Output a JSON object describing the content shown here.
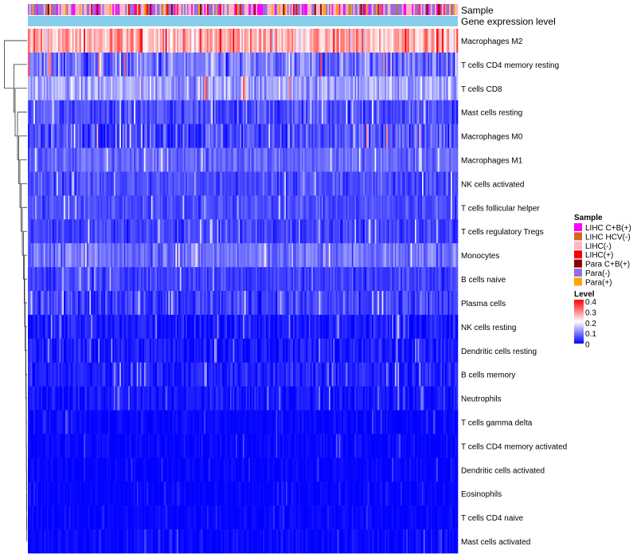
{
  "chart_data": {
    "type": "heatmap",
    "title": "",
    "annotation_tracks": [
      "Sample",
      "Gene expression level"
    ],
    "gene_expression_level_color": "#87ceeb",
    "rows": [
      {
        "name": "Macrophages M2",
        "mean": 0.26,
        "spread": 0.09
      },
      {
        "name": "T cells CD4 memory resting",
        "mean": 0.09,
        "spread": 0.08
      },
      {
        "name": "T cells CD8",
        "mean": 0.13,
        "spread": 0.06
      },
      {
        "name": "Mast cells resting",
        "mean": 0.06,
        "spread": 0.05
      },
      {
        "name": "Macrophages M0",
        "mean": 0.06,
        "spread": 0.07
      },
      {
        "name": "Macrophages M1",
        "mean": 0.08,
        "spread": 0.04
      },
      {
        "name": "NK cells activated",
        "mean": 0.06,
        "spread": 0.04
      },
      {
        "name": "T cells follicular helper",
        "mean": 0.06,
        "spread": 0.035
      },
      {
        "name": "T cells regulatory  Tregs",
        "mean": 0.05,
        "spread": 0.04
      },
      {
        "name": "Monocytes",
        "mean": 0.09,
        "spread": 0.05
      },
      {
        "name": "B cells naive",
        "mean": 0.05,
        "spread": 0.035
      },
      {
        "name": "Plasma cells",
        "mean": 0.05,
        "spread": 0.045
      },
      {
        "name": "NK cells resting",
        "mean": 0.02,
        "spread": 0.04
      },
      {
        "name": "Dendritic cells resting",
        "mean": 0.02,
        "spread": 0.035
      },
      {
        "name": "B cells memory",
        "mean": 0.025,
        "spread": 0.035
      },
      {
        "name": "Neutrophils",
        "mean": 0.015,
        "spread": 0.03
      },
      {
        "name": "T cells gamma delta",
        "mean": 0.005,
        "spread": 0.02
      },
      {
        "name": "T cells CD4 memory activated",
        "mean": 0.005,
        "spread": 0.02
      },
      {
        "name": "Dendritic cells activated",
        "mean": 0.004,
        "spread": 0.015
      },
      {
        "name": "Eosinophils",
        "mean": 0.003,
        "spread": 0.012
      },
      {
        "name": "T cells CD4 naive",
        "mean": 0.004,
        "spread": 0.015
      },
      {
        "name": "Mast cells activated",
        "mean": 0.006,
        "spread": 0.02
      }
    ],
    "n_samples": 300,
    "legend": {
      "sample": {
        "title": "Sample",
        "items": [
          {
            "label": "LIHC C+B(+)",
            "color": "#ff00ff"
          },
          {
            "label": "LIHC HCV(-)",
            "color": "#d2691e"
          },
          {
            "label": "LIHC(-)",
            "color": "#ffb6c1"
          },
          {
            "label": "LIHC(+)",
            "color": "#ff0000"
          },
          {
            "label": "Para C+B(+)",
            "color": "#8b0000"
          },
          {
            "label": "Para(-)",
            "color": "#9370db"
          },
          {
            "label": "Para(+)",
            "color": "#ffa500"
          }
        ]
      },
      "level": {
        "title": "Level",
        "ticks": [
          "0.4",
          "0.3",
          "0.2",
          "0.1",
          "0"
        ],
        "range": [
          0,
          0.4
        ],
        "colors": [
          "#0000ff",
          "#ffffff",
          "#ff0000"
        ]
      }
    },
    "dendrogram": {
      "heights": [
        0.95,
        0.55,
        0.5,
        0.4,
        0.35,
        0.3,
        0.25,
        0.2,
        0.15,
        0.12,
        0.1,
        0.08,
        0.06,
        0.05,
        0.04,
        0.035,
        0.03,
        0.025,
        0.02,
        0.015,
        0.01
      ]
    }
  }
}
